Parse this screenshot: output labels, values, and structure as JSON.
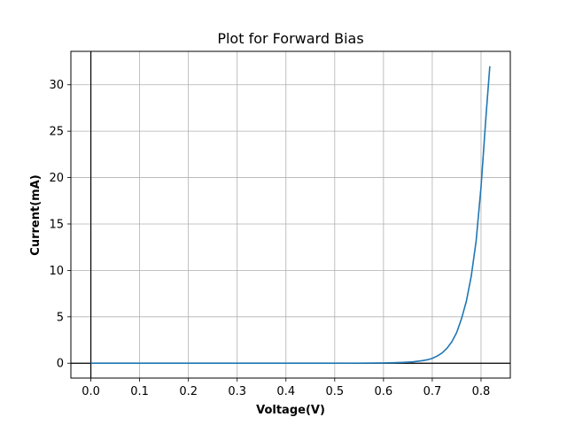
{
  "chart_data": {
    "type": "line",
    "title": "Plot for Forward Bias",
    "xlabel": "Voltage(V)",
    "ylabel": "Current(mA)",
    "xlim": [
      -0.041,
      0.86
    ],
    "ylim": [
      -1.6,
      33.6
    ],
    "xticks": [
      0.0,
      0.1,
      0.2,
      0.3,
      0.4,
      0.5,
      0.6,
      0.7,
      0.8
    ],
    "xtick_labels": [
      "0.0",
      "0.1",
      "0.2",
      "0.3",
      "0.4",
      "0.5",
      "0.6",
      "0.7",
      "0.8"
    ],
    "yticks": [
      0,
      5,
      10,
      15,
      20,
      25,
      30
    ],
    "ytick_labels": [
      "0",
      "5",
      "10",
      "15",
      "20",
      "25",
      "30"
    ],
    "grid": true,
    "reference_lines": {
      "x": 0,
      "y": 0
    },
    "series": [
      {
        "color": "#1f77b4",
        "x": [
          0.0,
          0.1,
          0.2,
          0.3,
          0.4,
          0.5,
          0.55,
          0.6,
          0.62,
          0.64,
          0.66,
          0.68,
          0.69,
          0.7,
          0.71,
          0.72,
          0.73,
          0.74,
          0.75,
          0.76,
          0.77,
          0.78,
          0.79,
          0.8,
          0.81,
          0.818
        ],
        "y": [
          0.0,
          0.0,
          0.0,
          0.0,
          0.0,
          0.0,
          0.01,
          0.03,
          0.05,
          0.09,
          0.15,
          0.28,
          0.37,
          0.52,
          0.77,
          1.1,
          1.6,
          2.3,
          3.3,
          4.8,
          6.7,
          9.4,
          13.2,
          19.0,
          26.5,
          32.0
        ]
      }
    ]
  }
}
